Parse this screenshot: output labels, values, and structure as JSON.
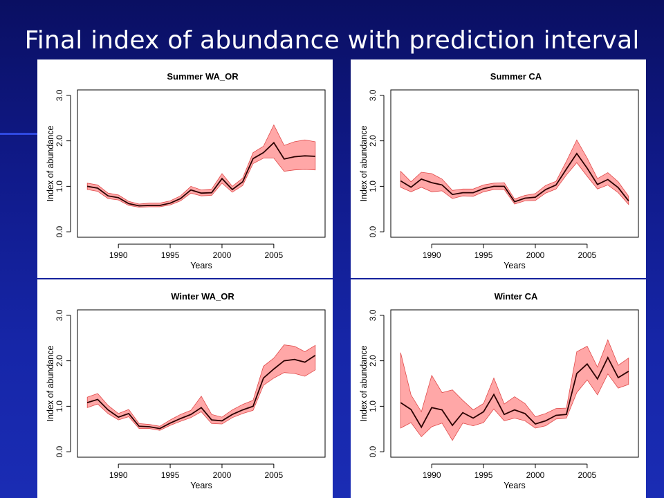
{
  "slide": {
    "title": "Final index of abundance with prediction interval"
  },
  "colors": {
    "band_fill": "#ffa7a7",
    "band_edge": "#e04a4a",
    "mean_line": "#2a0000",
    "background": "#101a8a"
  },
  "chart_data": [
    {
      "type": "area",
      "title": "Summer WA_OR",
      "xlabel": "Years",
      "ylabel": "Index of abundance",
      "xlim": [
        1987,
        2009
      ],
      "ylim": [
        0,
        3
      ],
      "xticks": [
        1990,
        1995,
        2000,
        2005
      ],
      "yticks": [
        0.0,
        1.0,
        2.0,
        3.0
      ],
      "ytick_labels": [
        "0.0",
        "1.0",
        "2.0",
        "3.0"
      ],
      "x": [
        1987,
        1988,
        1989,
        1990,
        1991,
        1992,
        1993,
        1994,
        1995,
        1996,
        1997,
        1998,
        1999,
        2000,
        2001,
        2002,
        2003,
        2004,
        2005,
        2006,
        2007,
        2008,
        2009
      ],
      "mean": [
        1.0,
        0.96,
        0.79,
        0.75,
        0.62,
        0.57,
        0.58,
        0.58,
        0.63,
        0.73,
        0.92,
        0.85,
        0.86,
        1.17,
        0.93,
        1.1,
        1.61,
        1.74,
        1.96,
        1.6,
        1.65,
        1.67,
        1.66
      ],
      "lower": [
        0.93,
        0.89,
        0.73,
        0.7,
        0.58,
        0.54,
        0.55,
        0.55,
        0.59,
        0.68,
        0.85,
        0.79,
        0.8,
        1.07,
        0.87,
        1.02,
        1.5,
        1.62,
        1.62,
        1.33,
        1.36,
        1.37,
        1.36
      ],
      "upper": [
        1.07,
        1.03,
        0.85,
        0.81,
        0.67,
        0.61,
        0.63,
        0.63,
        0.68,
        0.79,
        1.0,
        0.92,
        0.94,
        1.28,
        1.0,
        1.18,
        1.74,
        1.88,
        2.35,
        1.9,
        1.98,
        2.02,
        1.98
      ]
    },
    {
      "type": "area",
      "title": "Summer CA",
      "xlabel": "Years",
      "ylabel": "Index of abundance",
      "xlim": [
        1987,
        2009
      ],
      "ylim": [
        0,
        3
      ],
      "xticks": [
        1990,
        1995,
        2000,
        2005
      ],
      "yticks": [
        0.0,
        1.0,
        2.0,
        3.0
      ],
      "ytick_labels": [
        "0.0",
        "1.0",
        "2.0",
        "3.0"
      ],
      "x": [
        1987,
        1988,
        1989,
        1990,
        1991,
        1992,
        1993,
        1994,
        1995,
        1996,
        1997,
        1998,
        1999,
        2000,
        2001,
        2002,
        2003,
        2004,
        2005,
        2006,
        2007,
        2008,
        2009
      ],
      "mean": [
        1.12,
        0.98,
        1.16,
        1.08,
        1.03,
        0.82,
        0.86,
        0.86,
        0.95,
        1.0,
        1.0,
        0.66,
        0.74,
        0.76,
        0.93,
        1.03,
        1.38,
        1.72,
        1.4,
        1.04,
        1.15,
        0.97,
        0.68
      ],
      "lower": [
        0.98,
        0.88,
        0.98,
        0.88,
        0.9,
        0.73,
        0.79,
        0.78,
        0.88,
        0.93,
        0.93,
        0.61,
        0.68,
        0.69,
        0.85,
        0.94,
        1.25,
        1.52,
        1.22,
        0.94,
        1.03,
        0.86,
        0.6
      ],
      "upper": [
        1.33,
        1.1,
        1.31,
        1.28,
        1.16,
        0.91,
        0.94,
        0.94,
        1.03,
        1.07,
        1.08,
        0.72,
        0.8,
        0.84,
        1.02,
        1.11,
        1.55,
        2.02,
        1.62,
        1.17,
        1.3,
        1.1,
        0.78
      ]
    },
    {
      "type": "area",
      "title": "Winter WA_OR",
      "xlabel": "Years",
      "ylabel": "Index of abundance",
      "xlim": [
        1987,
        2009
      ],
      "ylim": [
        0,
        3
      ],
      "xticks": [
        1990,
        1995,
        2000,
        2005
      ],
      "yticks": [
        0.0,
        1.0,
        2.0,
        3.0
      ],
      "ytick_labels": [
        "0.0",
        "1.0",
        "2.0",
        "3.0"
      ],
      "x": [
        1987,
        1988,
        1989,
        1990,
        1991,
        1992,
        1993,
        1994,
        1995,
        1996,
        1997,
        1998,
        1999,
        2000,
        2001,
        2002,
        2003,
        2004,
        2005,
        2006,
        2007,
        2008,
        2009
      ],
      "mean": [
        1.08,
        1.15,
        0.92,
        0.76,
        0.84,
        0.56,
        0.55,
        0.51,
        0.63,
        0.73,
        0.82,
        0.97,
        0.7,
        0.68,
        0.82,
        0.92,
        1.0,
        1.62,
        1.82,
        2.0,
        2.03,
        1.97,
        2.12
      ],
      "lower": [
        0.97,
        1.05,
        0.84,
        0.7,
        0.77,
        0.51,
        0.51,
        0.47,
        0.58,
        0.67,
        0.75,
        0.88,
        0.62,
        0.61,
        0.75,
        0.84,
        0.91,
        1.46,
        1.62,
        1.74,
        1.72,
        1.66,
        1.8
      ],
      "upper": [
        1.2,
        1.28,
        1.02,
        0.84,
        0.93,
        0.62,
        0.6,
        0.56,
        0.7,
        0.82,
        0.91,
        1.22,
        0.82,
        0.76,
        0.92,
        1.04,
        1.13,
        1.88,
        2.06,
        2.35,
        2.32,
        2.2,
        2.34
      ]
    },
    {
      "type": "area",
      "title": "Winter CA",
      "xlabel": "Years",
      "ylabel": "Index of abundance",
      "xlim": [
        1987,
        2009
      ],
      "ylim": [
        0,
        3
      ],
      "xticks": [
        1990,
        1995,
        2000,
        2005
      ],
      "yticks": [
        0.0,
        1.0,
        2.0,
        3.0
      ],
      "ytick_labels": [
        "0.0",
        "1.0",
        "2.0",
        "3.0"
      ],
      "x": [
        1987,
        1988,
        1989,
        1990,
        1991,
        1992,
        1993,
        1994,
        1995,
        1996,
        1997,
        1998,
        1999,
        2000,
        2001,
        2002,
        2003,
        2004,
        2005,
        2006,
        2007,
        2008,
        2009
      ],
      "mean": [
        1.08,
        0.93,
        0.54,
        0.97,
        0.92,
        0.58,
        0.86,
        0.74,
        0.88,
        1.26,
        0.82,
        0.92,
        0.84,
        0.61,
        0.68,
        0.8,
        0.82,
        1.72,
        1.93,
        1.6,
        2.07,
        1.63,
        1.77
      ],
      "lower": [
        0.52,
        0.64,
        0.33,
        0.55,
        0.63,
        0.25,
        0.63,
        0.57,
        0.64,
        0.94,
        0.68,
        0.74,
        0.68,
        0.52,
        0.57,
        0.72,
        0.74,
        1.3,
        1.58,
        1.25,
        1.71,
        1.4,
        1.48
      ],
      "upper": [
        2.18,
        1.25,
        0.88,
        1.68,
        1.3,
        1.36,
        1.13,
        0.92,
        1.06,
        1.62,
        1.05,
        1.21,
        1.06,
        0.77,
        0.84,
        0.95,
        0.96,
        2.2,
        2.32,
        1.86,
        2.46,
        1.9,
        2.06
      ]
    }
  ]
}
